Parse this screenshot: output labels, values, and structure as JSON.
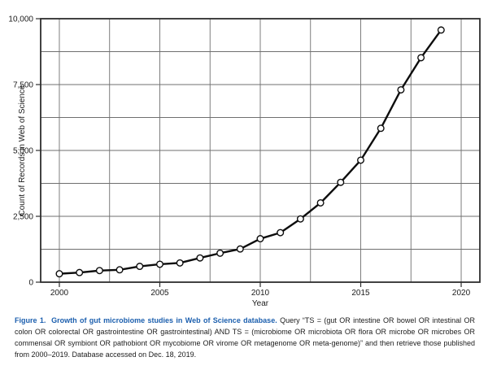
{
  "figure": {
    "accent_color": "#1c5fae",
    "caption_title": "Figure 1.  Growth of gut microbiome studies in Web of Science database.",
    "caption_body": " Query “TS = (gut OR intestine OR bowel OR intestinal OR colon OR colorectal OR gastrointestine OR gastrointestinal) AND TS = (microbiome OR microbiota OR flora OR microbe OR microbes OR commensal OR symbiont OR pathobiont OR mycobiome OR virome OR metagenome OR meta-genome)” and then retrieve those published from 2000–2019. Database accessed on Dec. 18, 2019."
  },
  "chart_data": {
    "type": "line",
    "title": "",
    "xlabel": "Year",
    "ylabel": "Count of Records in Web of Science",
    "x": [
      2000,
      2001,
      2002,
      2003,
      2004,
      2005,
      2006,
      2007,
      2008,
      2009,
      2010,
      2011,
      2012,
      2013,
      2014,
      2015,
      2016,
      2017,
      2018,
      2019
    ],
    "values": [
      320,
      365,
      440,
      470,
      600,
      680,
      730,
      920,
      1100,
      1260,
      1650,
      1880,
      2400,
      3010,
      3790,
      4630,
      5840,
      7300,
      8520,
      9570
    ],
    "xlim": [
      1999.07,
      2020.93
    ],
    "ylim": [
      0,
      10000
    ],
    "x_major_ticks": [
      2000,
      2005,
      2010,
      2015,
      2020
    ],
    "x_tick_labels": [
      "2000",
      "2005",
      "2010",
      "2015",
      "2020"
    ],
    "y_major_ticks": [
      0,
      2500,
      5000,
      7500,
      10000
    ],
    "y_tick_labels": [
      "0",
      "2,500",
      "5,000",
      "7,500",
      "10,000"
    ],
    "x_grid_start": 2000,
    "x_grid_end": 2020,
    "x_grid_step": 2.5,
    "y_grid_start": 0,
    "y_grid_end": 10000,
    "y_grid_step": 1250,
    "grid": true,
    "legend": "none",
    "marker": "open-circle",
    "line_color": "#0d0d0d",
    "marker_fill": "#ffffff",
    "grid_color": "#6f6f6f",
    "frame_color": "#2e2e2e",
    "text_color": "#1b1b1b"
  }
}
